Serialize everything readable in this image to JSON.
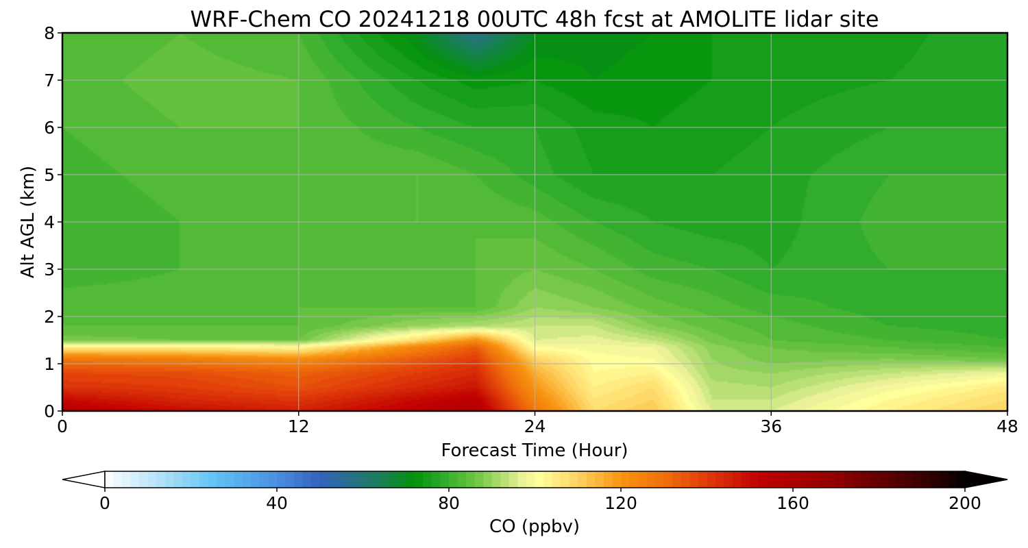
{
  "chart_data": {
    "type": "heatmap",
    "title": "WRF-Chem CO  20241218 00UTC 48h fcst at AMOLITE lidar site",
    "xlabel": "Forecast Time (Hour)",
    "ylabel": "Alt AGL (km)",
    "xlim": [
      0,
      48
    ],
    "ylim": [
      0,
      8
    ],
    "xticks": [
      0,
      12,
      24,
      36,
      48
    ],
    "yticks": [
      0,
      1,
      2,
      3,
      4,
      5,
      6,
      7,
      8
    ],
    "grid": true,
    "x": [
      0,
      6,
      12,
      18,
      21,
      24,
      27,
      30,
      33,
      36,
      42,
      48
    ],
    "y": [
      0,
      0.25,
      0.5,
      0.8,
      1.1,
      1.35,
      1.5,
      1.8,
      2.2,
      3,
      4,
      5,
      6,
      7,
      8
    ],
    "z": [
      [
        156,
        150,
        146,
        154,
        158,
        128,
        108,
        112,
        96,
        96,
        104,
        110
      ],
      [
        150,
        144,
        141,
        150,
        154,
        124,
        106,
        110,
        94,
        94,
        102,
        108
      ],
      [
        142,
        140,
        136,
        144,
        148,
        120,
        104,
        108,
        93,
        92,
        99,
        105
      ],
      [
        138,
        137,
        133,
        140,
        144,
        116,
        102,
        104,
        91,
        90,
        94,
        98
      ],
      [
        128,
        126,
        122,
        134,
        140,
        110,
        101,
        100,
        90,
        87,
        88,
        86
      ],
      [
        104,
        104,
        102,
        124,
        134,
        100,
        99,
        98,
        89,
        86,
        84,
        82
      ],
      [
        87,
        86,
        86,
        108,
        122,
        96,
        97,
        94,
        87,
        84,
        82,
        80
      ],
      [
        84,
        84,
        84,
        90,
        92,
        94,
        94,
        88,
        85,
        83,
        80,
        79
      ],
      [
        83,
        83,
        84,
        84,
        84,
        90,
        88,
        85,
        83,
        81,
        79,
        79
      ],
      [
        81,
        82,
        82,
        83,
        84,
        86,
        84,
        81,
        80,
        78,
        80,
        80
      ],
      [
        80,
        82,
        82,
        84,
        84,
        83,
        80,
        78,
        77,
        77,
        81,
        81
      ],
      [
        81,
        83,
        83,
        84,
        82,
        79,
        76,
        76,
        76,
        77,
        80,
        80
      ],
      [
        82,
        84,
        84,
        80,
        78,
        78,
        75,
        74,
        75,
        76,
        78,
        78
      ],
      [
        83,
        85,
        84,
        76,
        73,
        74,
        72,
        73,
        74,
        75,
        76,
        78
      ],
      [
        82,
        84,
        82,
        70,
        58,
        70,
        71,
        72,
        74,
        74,
        75,
        78
      ]
    ],
    "colorbar": {
      "label": "CO  (ppbv)",
      "min": 0,
      "max": 200,
      "ticks": [
        0,
        40,
        80,
        120,
        160,
        200
      ],
      "extend": "both",
      "levels": 100,
      "colors": [
        [
          0,
          "#ffffff"
        ],
        [
          15,
          "#a6dcf8"
        ],
        [
          25,
          "#63c4f5"
        ],
        [
          40,
          "#4a8fe0"
        ],
        [
          50,
          "#3262bb"
        ],
        [
          62,
          "#1f7a6a"
        ],
        [
          72,
          "#02920a"
        ],
        [
          78,
          "#2aa82a"
        ],
        [
          86,
          "#6cc440"
        ],
        [
          92,
          "#aedc6e"
        ],
        [
          97,
          "#eaf198"
        ],
        [
          101,
          "#ffff9c"
        ],
        [
          110,
          "#fed362"
        ],
        [
          120,
          "#f89410"
        ],
        [
          130,
          "#ef6f0a"
        ],
        [
          140,
          "#e03c0a"
        ],
        [
          152,
          "#c10000"
        ],
        [
          170,
          "#900000"
        ],
        [
          190,
          "#3a0000"
        ],
        [
          200,
          "#050000"
        ]
      ]
    }
  }
}
